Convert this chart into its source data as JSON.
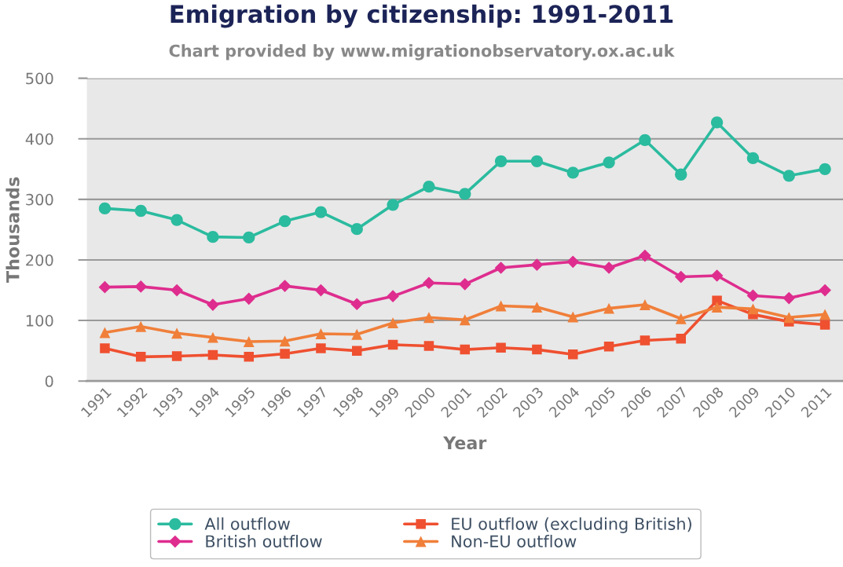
{
  "chart_data": {
    "type": "line",
    "title": "Emigration by citizenship: 1991-2011",
    "subtitle": "Chart provided by www.migrationobservatory.ox.ac.uk",
    "xlabel": "Year",
    "ylabel": "Thousands",
    "categories": [
      "1991",
      "1992",
      "1993",
      "1994",
      "1995",
      "1996",
      "1997",
      "1998",
      "1999",
      "2000",
      "2001",
      "2002",
      "2003",
      "2004",
      "2005",
      "2006",
      "2007",
      "2008",
      "2009",
      "2010",
      "2011"
    ],
    "series": [
      {
        "name": "All outflow",
        "color": "#2bbb9f",
        "marker": "circle",
        "values": [
          285,
          281,
          266,
          238,
          237,
          264,
          279,
          251,
          291,
          321,
          309,
          363,
          363,
          344,
          361,
          398,
          341,
          427,
          368,
          339,
          350
        ]
      },
      {
        "name": "British outflow",
        "color": "#de2d8e",
        "marker": "diamond",
        "values": [
          155,
          156,
          150,
          126,
          136,
          157,
          150,
          127,
          140,
          162,
          160,
          187,
          192,
          197,
          187,
          207,
          172,
          174,
          141,
          137,
          150
        ]
      },
      {
        "name": "EU outflow (excluding British)",
        "color": "#ef5030",
        "marker": "square",
        "values": [
          54,
          40,
          41,
          43,
          40,
          45,
          54,
          50,
          60,
          58,
          52,
          55,
          52,
          44,
          57,
          67,
          70,
          133,
          110,
          98,
          93
        ]
      },
      {
        "name": "Non-EU outflow",
        "color": "#f07f3a",
        "marker": "triangle",
        "values": [
          80,
          90,
          79,
          72,
          65,
          66,
          78,
          77,
          96,
          105,
          101,
          124,
          122,
          106,
          120,
          126,
          103,
          122,
          119,
          105,
          110
        ]
      }
    ],
    "ylim": [
      0,
      500
    ],
    "yticks": [
      0,
      100,
      200,
      300,
      400,
      500
    ],
    "grid": "y",
    "legend": "bottom"
  }
}
